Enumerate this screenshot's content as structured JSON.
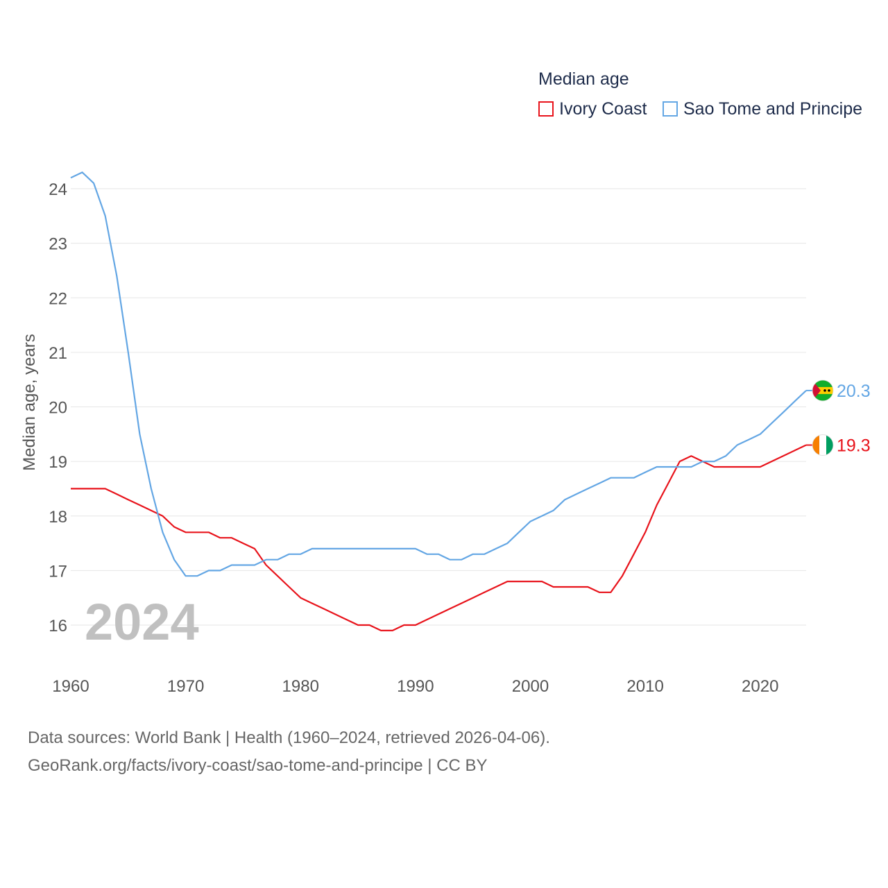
{
  "legend": {
    "title": "Median age",
    "items": [
      {
        "label": "Ivory Coast",
        "color": "#e8131b"
      },
      {
        "label": "Sao Tome and Principe",
        "color": "#63a6e4"
      }
    ]
  },
  "sources": {
    "line1": "Data sources: World Bank | Health (1960–2024, retrieved 2026-04-06).",
    "line2": "GeoRank.org/facts/ivory-coast/sao-tome-and-principe | CC BY"
  },
  "chart_data": {
    "type": "line",
    "title": "Median age",
    "xlabel": "",
    "ylabel": "Median age, years",
    "watermark": "2024",
    "xlim": [
      1960,
      2024
    ],
    "ylim": [
      15.2,
      24.6
    ],
    "x_ticks": [
      "1960",
      "1970",
      "1980",
      "1990",
      "2000",
      "2010",
      "2020"
    ],
    "y_ticks": [
      "16",
      "17",
      "18",
      "19",
      "20",
      "21",
      "22",
      "23",
      "24"
    ],
    "grid": true,
    "x": [
      1960,
      1961,
      1962,
      1963,
      1964,
      1965,
      1966,
      1967,
      1968,
      1969,
      1970,
      1971,
      1972,
      1973,
      1974,
      1975,
      1976,
      1977,
      1978,
      1979,
      1980,
      1981,
      1982,
      1983,
      1984,
      1985,
      1986,
      1987,
      1988,
      1989,
      1990,
      1991,
      1992,
      1993,
      1994,
      1995,
      1996,
      1997,
      1998,
      1999,
      2000,
      2001,
      2002,
      2003,
      2004,
      2005,
      2006,
      2007,
      2008,
      2009,
      2010,
      2011,
      2012,
      2013,
      2014,
      2015,
      2016,
      2017,
      2018,
      2019,
      2020,
      2021,
      2022,
      2023,
      2024
    ],
    "series": [
      {
        "name": "Ivory Coast",
        "color": "#e8131b",
        "end_label": "19.3",
        "values": [
          18.5,
          18.5,
          18.5,
          18.5,
          18.4,
          18.3,
          18.2,
          18.1,
          18.0,
          17.8,
          17.7,
          17.7,
          17.7,
          17.6,
          17.6,
          17.5,
          17.4,
          17.1,
          16.9,
          16.7,
          16.5,
          16.4,
          16.3,
          16.2,
          16.1,
          16.0,
          16.0,
          15.9,
          15.9,
          16.0,
          16.0,
          16.1,
          16.2,
          16.3,
          16.4,
          16.5,
          16.6,
          16.7,
          16.8,
          16.8,
          16.8,
          16.8,
          16.7,
          16.7,
          16.7,
          16.7,
          16.6,
          16.6,
          16.9,
          17.3,
          17.7,
          18.2,
          18.6,
          19.0,
          19.1,
          19.0,
          18.9,
          18.9,
          18.9,
          18.9,
          18.9,
          19.0,
          19.1,
          19.2,
          19.3
        ]
      },
      {
        "name": "Sao Tome and Principe",
        "color": "#63a6e4",
        "end_label": "20.3",
        "values": [
          24.2,
          24.3,
          24.1,
          23.5,
          22.4,
          21.0,
          19.5,
          18.5,
          17.7,
          17.2,
          16.9,
          16.9,
          17.0,
          17.0,
          17.1,
          17.1,
          17.1,
          17.2,
          17.2,
          17.3,
          17.3,
          17.4,
          17.4,
          17.4,
          17.4,
          17.4,
          17.4,
          17.4,
          17.4,
          17.4,
          17.4,
          17.3,
          17.3,
          17.2,
          17.2,
          17.3,
          17.3,
          17.4,
          17.5,
          17.7,
          17.9,
          18.0,
          18.1,
          18.3,
          18.4,
          18.5,
          18.6,
          18.7,
          18.7,
          18.7,
          18.8,
          18.9,
          18.9,
          18.9,
          18.9,
          19.0,
          19.0,
          19.1,
          19.3,
          19.4,
          19.5,
          19.7,
          19.9,
          20.1,
          20.3
        ]
      }
    ]
  }
}
